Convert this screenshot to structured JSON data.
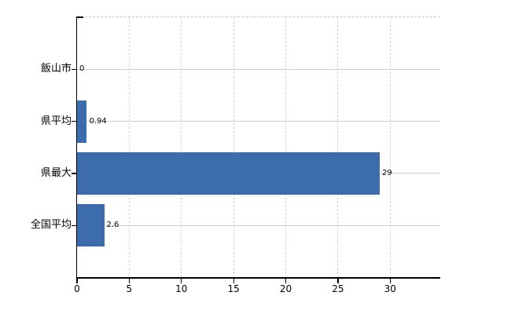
{
  "chart_data": {
    "type": "bar",
    "orientation": "horizontal",
    "categories": [
      "飯山市",
      "県平均",
      "県最大",
      "全国平均"
    ],
    "values": [
      0,
      0.94,
      29,
      2.6
    ],
    "value_labels": [
      "0",
      "0.94",
      "29",
      "2.6"
    ],
    "x_ticks": [
      0,
      5,
      10,
      15,
      20,
      25,
      30
    ],
    "xlim": [
      0,
      34.8
    ],
    "title": "",
    "legend": "none",
    "grid": {
      "vertical": "dashed",
      "horizontal": "solid",
      "top_border": "dashed"
    },
    "bar_color": "#3d6cac"
  },
  "colors": {
    "background": "#ffffff",
    "bar": "#3d6cac",
    "axis": "#000000",
    "text": "#000000",
    "vertical_gridline": "#d9d2d8",
    "horizontal_gridline": "#ccd3c6",
    "top_border": "#c9c9c9"
  }
}
